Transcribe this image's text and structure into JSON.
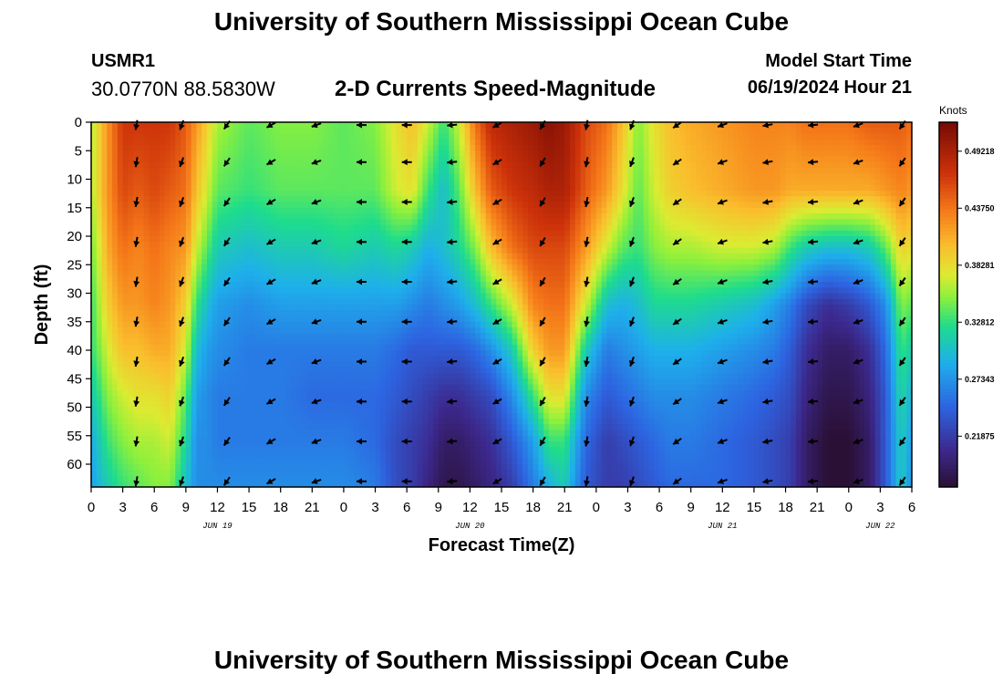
{
  "header": {
    "title": "University of Southern Mississippi Ocean Cube",
    "station_id": "USMR1",
    "coordinates": "30.0770N  88.5830W",
    "subtitle": "2-D Currents Speed-Magnitude",
    "model_start_label": "Model Start Time",
    "model_start_value": "06/19/2024 Hour 21"
  },
  "footer": {
    "title": "University of Southern Mississippi Ocean Cube"
  },
  "chart_data": {
    "type": "heatmap",
    "title": "2-D Currents Speed-Magnitude",
    "xlabel": "Forecast Time(Z)",
    "ylabel": "Depth (ft)",
    "x_range_hours": [
      0,
      78
    ],
    "y_range_ft": [
      0,
      64
    ],
    "x_ticks": [
      {
        "hour": 0,
        "label": "0"
      },
      {
        "hour": 3,
        "label": "3"
      },
      {
        "hour": 6,
        "label": "6"
      },
      {
        "hour": 9,
        "label": "9"
      },
      {
        "hour": 12,
        "label": "12"
      },
      {
        "hour": 15,
        "label": "15"
      },
      {
        "hour": 18,
        "label": "18"
      },
      {
        "hour": 21,
        "label": "21"
      },
      {
        "hour": 24,
        "label": "0"
      },
      {
        "hour": 27,
        "label": "3"
      },
      {
        "hour": 30,
        "label": "6"
      },
      {
        "hour": 33,
        "label": "9"
      },
      {
        "hour": 36,
        "label": "12"
      },
      {
        "hour": 39,
        "label": "15"
      },
      {
        "hour": 42,
        "label": "18"
      },
      {
        "hour": 45,
        "label": "21"
      },
      {
        "hour": 48,
        "label": "0"
      },
      {
        "hour": 51,
        "label": "3"
      },
      {
        "hour": 54,
        "label": "6"
      },
      {
        "hour": 57,
        "label": "9"
      },
      {
        "hour": 60,
        "label": "12"
      },
      {
        "hour": 63,
        "label": "15"
      },
      {
        "hour": 66,
        "label": "18"
      },
      {
        "hour": 69,
        "label": "21"
      },
      {
        "hour": 72,
        "label": "0"
      },
      {
        "hour": 75,
        "label": "3"
      },
      {
        "hour": 78,
        "label": "6"
      }
    ],
    "y_ticks": [
      0,
      5,
      10,
      15,
      20,
      25,
      30,
      35,
      40,
      45,
      50,
      55,
      60
    ],
    "date_labels": [
      {
        "hour": 12,
        "label": "JUN 19"
      },
      {
        "hour": 36,
        "label": "JUN 20"
      },
      {
        "hour": 60,
        "label": "JUN 21"
      },
      {
        "hour": 75,
        "label": "JUN 22"
      }
    ],
    "colorbar": {
      "unit": "Knots",
      "min": 0.17,
      "max": 0.52,
      "ticks": [
        0.49218,
        0.4375,
        0.38281,
        0.32812,
        0.27343,
        0.21875
      ],
      "tick_labels": [
        "0.49218",
        "0.43750",
        "0.38281",
        "0.32812",
        "0.27343",
        "0.21875"
      ]
    },
    "vector_hours": [
      4.3,
      8.6,
      12.9,
      17.1,
      21.4,
      25.7,
      30.0,
      34.3,
      38.6,
      42.9,
      47.1,
      51.4,
      55.7,
      60.0,
      64.3,
      68.6,
      72.9,
      77.1
    ],
    "vector_depths": [
      0.5,
      7,
      14,
      21,
      28,
      35,
      42,
      49,
      56,
      63
    ],
    "vector_angles_deg": [
      260,
      250,
      235,
      210,
      200,
      180,
      180,
      185,
      210,
      240,
      260,
      250,
      215,
      200,
      190,
      185,
      200,
      235
    ],
    "speed_profiles": [
      {
        "hour": 0.0,
        "depth_ft": [
          0,
          12,
          22,
          32,
          40,
          48,
          56,
          64
        ],
        "speed": [
          0.36,
          0.36,
          0.35,
          0.33,
          0.33,
          0.31,
          0.29,
          0.28
        ]
      },
      {
        "hour": 0.5,
        "depth_ft": [
          0,
          12,
          22,
          32,
          40,
          48,
          56,
          64
        ],
        "speed": [
          0.38,
          0.38,
          0.36,
          0.35,
          0.34,
          0.32,
          0.3,
          0.29
        ]
      },
      {
        "hour": 1.5,
        "depth_ft": [
          0,
          12,
          22,
          32,
          40,
          48,
          56,
          64
        ],
        "speed": [
          0.42,
          0.42,
          0.41,
          0.39,
          0.37,
          0.35,
          0.33,
          0.31
        ]
      },
      {
        "hour": 3.0,
        "depth_ft": [
          0,
          12,
          22,
          32,
          40,
          48,
          56,
          64
        ],
        "speed": [
          0.47,
          0.46,
          0.44,
          0.42,
          0.4,
          0.37,
          0.35,
          0.33
        ]
      },
      {
        "hour": 4.5,
        "depth_ft": [
          0,
          12,
          22,
          32,
          40,
          48,
          56,
          64
        ],
        "speed": [
          0.47,
          0.45,
          0.43,
          0.42,
          0.4,
          0.38,
          0.36,
          0.34
        ]
      },
      {
        "hour": 6.0,
        "depth_ft": [
          0,
          12,
          22,
          32,
          40,
          48,
          56,
          64
        ],
        "speed": [
          0.47,
          0.46,
          0.44,
          0.43,
          0.41,
          0.38,
          0.36,
          0.35
        ]
      },
      {
        "hour": 7.5,
        "depth_ft": [
          0,
          12,
          22,
          32,
          40,
          48,
          56,
          64
        ],
        "speed": [
          0.47,
          0.45,
          0.43,
          0.42,
          0.41,
          0.39,
          0.37,
          0.35
        ]
      },
      {
        "hour": 9.0,
        "depth_ft": [
          0,
          12,
          22,
          32,
          40,
          48,
          56,
          64
        ],
        "speed": [
          0.45,
          0.44,
          0.42,
          0.39,
          0.37,
          0.34,
          0.32,
          0.3
        ]
      },
      {
        "hour": 10.0,
        "depth_ft": [
          0,
          12,
          22,
          32,
          40,
          48,
          56,
          64
        ],
        "speed": [
          0.42,
          0.4,
          0.37,
          0.33,
          0.3,
          0.28,
          0.27,
          0.27
        ]
      },
      {
        "hour": 11.0,
        "depth_ft": [
          0,
          12,
          22,
          32,
          40,
          48,
          56,
          64
        ],
        "speed": [
          0.39,
          0.37,
          0.34,
          0.3,
          0.28,
          0.27,
          0.27,
          0.27
        ]
      },
      {
        "hour": 12.0,
        "depth_ft": [
          0,
          12,
          22,
          32,
          40,
          48,
          56,
          64
        ],
        "speed": [
          0.36,
          0.34,
          0.31,
          0.28,
          0.27,
          0.26,
          0.26,
          0.27
        ]
      },
      {
        "hour": 15.0,
        "depth_ft": [
          0,
          12,
          22,
          32,
          40,
          48,
          56,
          64
        ],
        "speed": [
          0.34,
          0.33,
          0.3,
          0.27,
          0.26,
          0.26,
          0.26,
          0.27
        ]
      },
      {
        "hour": 18.0,
        "depth_ft": [
          0,
          12,
          22,
          32,
          40,
          48,
          56,
          64
        ],
        "speed": [
          0.35,
          0.34,
          0.31,
          0.28,
          0.26,
          0.26,
          0.26,
          0.27
        ]
      },
      {
        "hour": 21.0,
        "depth_ft": [
          0,
          12,
          22,
          32,
          40,
          48,
          56,
          64
        ],
        "speed": [
          0.35,
          0.34,
          0.31,
          0.28,
          0.26,
          0.25,
          0.26,
          0.27
        ]
      },
      {
        "hour": 24.0,
        "depth_ft": [
          0,
          12,
          22,
          32,
          40,
          48,
          56,
          64
        ],
        "speed": [
          0.34,
          0.34,
          0.32,
          0.28,
          0.26,
          0.25,
          0.26,
          0.27
        ]
      },
      {
        "hour": 27.0,
        "depth_ft": [
          0,
          12,
          22,
          32,
          40,
          48,
          56,
          64
        ],
        "speed": [
          0.35,
          0.34,
          0.31,
          0.28,
          0.26,
          0.25,
          0.25,
          0.26
        ]
      },
      {
        "hour": 29.0,
        "depth_ft": [
          0,
          12,
          22,
          32,
          40,
          48,
          56,
          64
        ],
        "speed": [
          0.38,
          0.37,
          0.32,
          0.28,
          0.25,
          0.24,
          0.23,
          0.23
        ]
      },
      {
        "hour": 30.5,
        "depth_ft": [
          0,
          12,
          22,
          32,
          40,
          48,
          56,
          64
        ],
        "speed": [
          0.4,
          0.38,
          0.31,
          0.27,
          0.24,
          0.23,
          0.22,
          0.22
        ]
      },
      {
        "hour": 32.0,
        "depth_ft": [
          0,
          12,
          22,
          32,
          40,
          48,
          56,
          64
        ],
        "speed": [
          0.37,
          0.33,
          0.29,
          0.26,
          0.24,
          0.22,
          0.21,
          0.2
        ]
      },
      {
        "hour": 33.5,
        "depth_ft": [
          0,
          12,
          22,
          32,
          40,
          48,
          56,
          64
        ],
        "speed": [
          0.33,
          0.3,
          0.3,
          0.27,
          0.24,
          0.21,
          0.19,
          0.18
        ]
      },
      {
        "hour": 35.0,
        "depth_ft": [
          0,
          12,
          22,
          32,
          40,
          48,
          56,
          64
        ],
        "speed": [
          0.37,
          0.34,
          0.32,
          0.28,
          0.24,
          0.21,
          0.19,
          0.18
        ]
      },
      {
        "hour": 36.5,
        "depth_ft": [
          0,
          12,
          22,
          32,
          40,
          48,
          56,
          64
        ],
        "speed": [
          0.44,
          0.4,
          0.35,
          0.3,
          0.25,
          0.22,
          0.2,
          0.19
        ]
      },
      {
        "hour": 38.0,
        "depth_ft": [
          0,
          12,
          22,
          32,
          40,
          48,
          56,
          64
        ],
        "speed": [
          0.48,
          0.45,
          0.4,
          0.33,
          0.27,
          0.23,
          0.21,
          0.2
        ]
      },
      {
        "hour": 40.0,
        "depth_ft": [
          0,
          12,
          22,
          32,
          40,
          48,
          56,
          64
        ],
        "speed": [
          0.49,
          0.47,
          0.44,
          0.37,
          0.31,
          0.27,
          0.24,
          0.22
        ]
      },
      {
        "hour": 42.0,
        "depth_ft": [
          0,
          12,
          22,
          32,
          40,
          48,
          56,
          64
        ],
        "speed": [
          0.5,
          0.48,
          0.46,
          0.43,
          0.39,
          0.33,
          0.28,
          0.26
        ]
      },
      {
        "hour": 43.5,
        "depth_ft": [
          0,
          12,
          22,
          32,
          40,
          48,
          56,
          64
        ],
        "speed": [
          0.51,
          0.49,
          0.46,
          0.44,
          0.42,
          0.38,
          0.33,
          0.29
        ]
      },
      {
        "hour": 45.0,
        "depth_ft": [
          0,
          12,
          22,
          32,
          40,
          48,
          56,
          64
        ],
        "speed": [
          0.5,
          0.49,
          0.46,
          0.44,
          0.42,
          0.38,
          0.33,
          0.31
        ]
      },
      {
        "hour": 47.0,
        "depth_ft": [
          0,
          12,
          22,
          32,
          40,
          48,
          56,
          64
        ],
        "speed": [
          0.46,
          0.45,
          0.42,
          0.37,
          0.31,
          0.27,
          0.25,
          0.24
        ]
      },
      {
        "hour": 49.0,
        "depth_ft": [
          0,
          12,
          22,
          32,
          40,
          48,
          56,
          64
        ],
        "speed": [
          0.44,
          0.42,
          0.37,
          0.3,
          0.26,
          0.24,
          0.22,
          0.22
        ]
      },
      {
        "hour": 50.5,
        "depth_ft": [
          0,
          12,
          22,
          32,
          40,
          48,
          56,
          64
        ],
        "speed": [
          0.4,
          0.38,
          0.34,
          0.29,
          0.27,
          0.25,
          0.23,
          0.22
        ]
      },
      {
        "hour": 52.0,
        "depth_ft": [
          0,
          12,
          22,
          32,
          40,
          48,
          56,
          64
        ],
        "speed": [
          0.35,
          0.34,
          0.33,
          0.3,
          0.28,
          0.26,
          0.24,
          0.23
        ]
      },
      {
        "hour": 53.5,
        "depth_ft": [
          0,
          12,
          22,
          32,
          40,
          48,
          56,
          64
        ],
        "speed": [
          0.38,
          0.37,
          0.35,
          0.32,
          0.29,
          0.27,
          0.25,
          0.24
        ]
      },
      {
        "hour": 55.0,
        "depth_ft": [
          0,
          12,
          22,
          32,
          40,
          48,
          56,
          64
        ],
        "speed": [
          0.4,
          0.39,
          0.36,
          0.32,
          0.29,
          0.27,
          0.26,
          0.25
        ]
      },
      {
        "hour": 57.0,
        "depth_ft": [
          0,
          12,
          22,
          32,
          40,
          48,
          56,
          64
        ],
        "speed": [
          0.41,
          0.4,
          0.36,
          0.32,
          0.29,
          0.27,
          0.26,
          0.25
        ]
      },
      {
        "hour": 60.0,
        "depth_ft": [
          0,
          12,
          22,
          32,
          40,
          48,
          56,
          64
        ],
        "speed": [
          0.42,
          0.41,
          0.37,
          0.31,
          0.28,
          0.26,
          0.25,
          0.25
        ]
      },
      {
        "hour": 63.0,
        "depth_ft": [
          0,
          12,
          22,
          32,
          40,
          48,
          56,
          64
        ],
        "speed": [
          0.43,
          0.42,
          0.37,
          0.3,
          0.27,
          0.25,
          0.24,
          0.24
        ]
      },
      {
        "hour": 65.0,
        "depth_ft": [
          0,
          12,
          22,
          32,
          40,
          48,
          56,
          64
        ],
        "speed": [
          0.43,
          0.42,
          0.36,
          0.28,
          0.26,
          0.24,
          0.23,
          0.23
        ]
      },
      {
        "hour": 66.5,
        "depth_ft": [
          0,
          12,
          22,
          32,
          40,
          48,
          56,
          64
        ],
        "speed": [
          0.43,
          0.41,
          0.33,
          0.26,
          0.24,
          0.23,
          0.22,
          0.22
        ]
      },
      {
        "hour": 68.0,
        "depth_ft": [
          0,
          12,
          22,
          32,
          40,
          48,
          56,
          64
        ],
        "speed": [
          0.44,
          0.41,
          0.31,
          0.23,
          0.21,
          0.2,
          0.19,
          0.19
        ]
      },
      {
        "hour": 70.0,
        "depth_ft": [
          0,
          12,
          22,
          32,
          40,
          48,
          56,
          64
        ],
        "speed": [
          0.44,
          0.41,
          0.3,
          0.21,
          0.19,
          0.18,
          0.17,
          0.17
        ]
      },
      {
        "hour": 72.0,
        "depth_ft": [
          0,
          12,
          22,
          32,
          40,
          48,
          56,
          64
        ],
        "speed": [
          0.44,
          0.41,
          0.3,
          0.22,
          0.19,
          0.18,
          0.17,
          0.17
        ]
      },
      {
        "hour": 74.0,
        "depth_ft": [
          0,
          12,
          22,
          32,
          40,
          48,
          56,
          64
        ],
        "speed": [
          0.45,
          0.41,
          0.31,
          0.24,
          0.21,
          0.2,
          0.19,
          0.19
        ]
      },
      {
        "hour": 75.5,
        "depth_ft": [
          0,
          12,
          22,
          32,
          40,
          48,
          56,
          64
        ],
        "speed": [
          0.45,
          0.42,
          0.34,
          0.27,
          0.25,
          0.24,
          0.24,
          0.24
        ]
      },
      {
        "hour": 77.0,
        "depth_ft": [
          0,
          12,
          22,
          32,
          40,
          48,
          56,
          64
        ],
        "speed": [
          0.45,
          0.43,
          0.39,
          0.35,
          0.33,
          0.32,
          0.31,
          0.31
        ]
      },
      {
        "hour": 78.0,
        "depth_ft": [
          0,
          12,
          22,
          32,
          40,
          48,
          56,
          64
        ],
        "speed": [
          0.44,
          0.42,
          0.38,
          0.34,
          0.31,
          0.29,
          0.28,
          0.27
        ]
      }
    ]
  }
}
